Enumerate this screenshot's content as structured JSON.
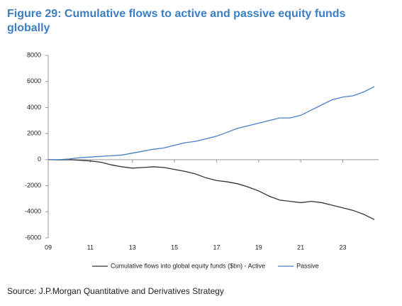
{
  "chart_data": {
    "type": "line",
    "title_lines": [
      "Figure 29: Cumulative flows to active and passive equity funds",
      "globally"
    ],
    "x": [
      9,
      9.5,
      10,
      10.5,
      11,
      11.5,
      12,
      12.5,
      13,
      13.5,
      14,
      14.5,
      15,
      15.5,
      16,
      16.5,
      17,
      17.5,
      18,
      18.5,
      19,
      19.5,
      20,
      20.5,
      21,
      21.5,
      22,
      22.5,
      23,
      23.5,
      24,
      24.5
    ],
    "series": [
      {
        "name": "Cumulative flows into global equity funds ($bn) - Active",
        "color": "#333333",
        "values": [
          0,
          -20,
          0,
          -50,
          -100,
          -200,
          -400,
          -550,
          -650,
          -600,
          -550,
          -600,
          -750,
          -900,
          -1100,
          -1400,
          -1600,
          -1700,
          -1850,
          -2100,
          -2400,
          -2800,
          -3100,
          -3200,
          -3300,
          -3200,
          -3300,
          -3500,
          -3700,
          -3900,
          -4200,
          -4600
        ]
      },
      {
        "name": "Passive",
        "color": "#4a7fc9",
        "values": [
          0,
          0,
          50,
          150,
          200,
          250,
          300,
          350,
          500,
          650,
          800,
          900,
          1100,
          1300,
          1400,
          1600,
          1800,
          2100,
          2400,
          2600,
          2800,
          3000,
          3200,
          3200,
          3400,
          3800,
          4200,
          4600,
          4800,
          4900,
          5200,
          5600
        ]
      }
    ],
    "xlim": [
      9,
      24.7
    ],
    "xticks": [
      {
        "value": 9,
        "label": "09"
      },
      11,
      13,
      15,
      17,
      19,
      21,
      23
    ],
    "ylim": [
      -6000,
      8000
    ],
    "yticks": [
      -6000,
      -4000,
      -2000,
      0,
      2000,
      4000,
      6000,
      8000
    ],
    "source": "Source: J.P.Morgan Quantitative and Derivatives Strategy"
  }
}
